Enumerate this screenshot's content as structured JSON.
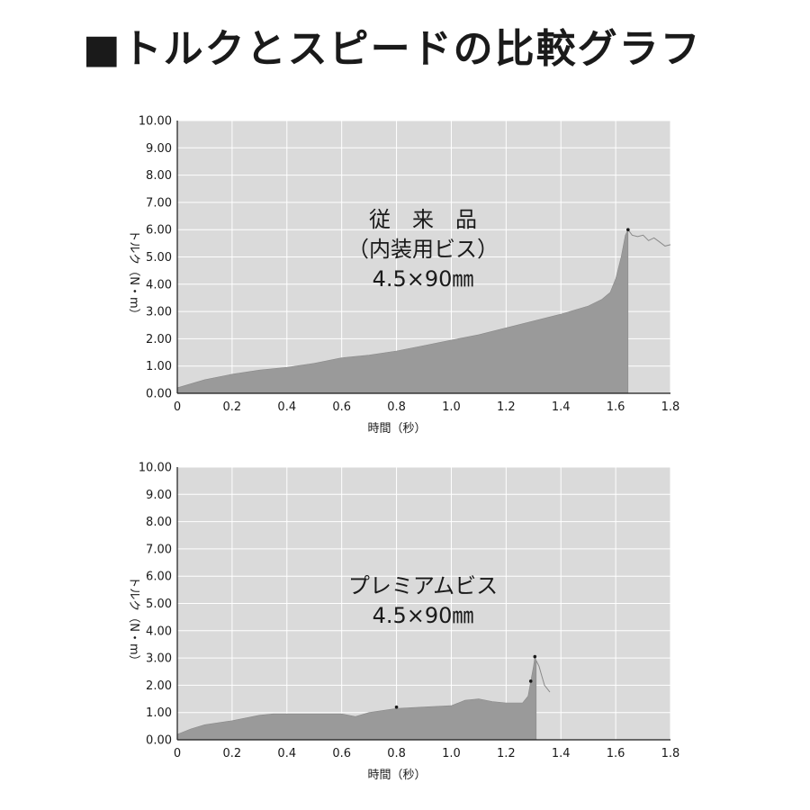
{
  "title": "■トルクとスピードの比較グラフ",
  "chart_data": [
    {
      "type": "area",
      "annotation_lines": [
        "従　来　品",
        "（内装用ビス）",
        "4.5×90㎜"
      ],
      "xlabel": "時間（秒）",
      "ylabel": "トルク（N・m）",
      "xlim": [
        0,
        1.8
      ],
      "ylim": [
        0,
        10
      ],
      "x_ticks": [
        "0",
        "0.2",
        "0.4",
        "0.6",
        "0.8",
        "1.0",
        "1.2",
        "1.4",
        "1.6",
        "1.8"
      ],
      "y_ticks": [
        "0.00",
        "1.00",
        "2.00",
        "3.00",
        "4.00",
        "5.00",
        "6.00",
        "7.00",
        "8.00",
        "9.00",
        "10.00"
      ],
      "grid": true,
      "series": [
        {
          "values": [
            [
              0,
              0.2
            ],
            [
              0.1,
              0.5
            ],
            [
              0.2,
              0.7
            ],
            [
              0.3,
              0.85
            ],
            [
              0.4,
              0.95
            ],
            [
              0.5,
              1.1
            ],
            [
              0.6,
              1.3
            ],
            [
              0.7,
              1.4
            ],
            [
              0.8,
              1.55
            ],
            [
              0.9,
              1.75
            ],
            [
              1.0,
              1.95
            ],
            [
              1.1,
              2.15
            ],
            [
              1.2,
              2.4
            ],
            [
              1.3,
              2.65
            ],
            [
              1.4,
              2.9
            ],
            [
              1.5,
              3.2
            ],
            [
              1.55,
              3.45
            ],
            [
              1.58,
              3.7
            ],
            [
              1.6,
              4.2
            ],
            [
              1.62,
              5.0
            ],
            [
              1.635,
              5.8
            ],
            [
              1.645,
              6.0
            ]
          ]
        },
        {
          "values": [
            [
              1.645,
              6.0
            ],
            [
              1.66,
              5.8
            ],
            [
              1.68,
              5.75
            ],
            [
              1.7,
              5.8
            ],
            [
              1.72,
              5.6
            ],
            [
              1.74,
              5.7
            ],
            [
              1.76,
              5.55
            ],
            [
              1.78,
              5.4
            ],
            [
              1.8,
              5.45
            ]
          ]
        }
      ],
      "markers": [
        [
          1.645,
          6.0
        ]
      ]
    },
    {
      "type": "area",
      "annotation_lines": [
        "プレミアムビス",
        "4.5×90㎜"
      ],
      "xlabel": "時間（秒）",
      "ylabel": "トルク（N・m）",
      "xlim": [
        0,
        1.8
      ],
      "ylim": [
        0,
        10
      ],
      "x_ticks": [
        "0",
        "0.2",
        "0.4",
        "0.6",
        "0.8",
        "1.0",
        "1.2",
        "1.4",
        "1.6",
        "1.8"
      ],
      "y_ticks": [
        "0.00",
        "1.00",
        "2.00",
        "3.00",
        "4.00",
        "5.00",
        "6.00",
        "7.00",
        "8.00",
        "9.00",
        "10.00"
      ],
      "grid": true,
      "series": [
        {
          "values": [
            [
              0,
              0.2
            ],
            [
              0.05,
              0.4
            ],
            [
              0.1,
              0.55
            ],
            [
              0.2,
              0.7
            ],
            [
              0.3,
              0.9
            ],
            [
              0.35,
              0.95
            ],
            [
              0.4,
              0.95
            ],
            [
              0.5,
              0.95
            ],
            [
              0.6,
              0.95
            ],
            [
              0.65,
              0.85
            ],
            [
              0.7,
              1.0
            ],
            [
              0.8,
              1.15
            ],
            [
              0.9,
              1.2
            ],
            [
              1.0,
              1.25
            ],
            [
              1.05,
              1.45
            ],
            [
              1.1,
              1.5
            ],
            [
              1.15,
              1.4
            ],
            [
              1.2,
              1.35
            ],
            [
              1.26,
              1.35
            ],
            [
              1.28,
              1.6
            ],
            [
              1.29,
              2.15
            ],
            [
              1.3,
              2.7
            ],
            [
              1.305,
              3.05
            ],
            [
              1.31,
              2.9
            ]
          ]
        },
        {
          "values": [
            [
              1.31,
              2.9
            ],
            [
              1.32,
              2.7
            ],
            [
              1.33,
              2.35
            ],
            [
              1.34,
              2.0
            ],
            [
              1.36,
              1.75
            ]
          ]
        }
      ],
      "markers": [
        [
          0.8,
          1.2
        ],
        [
          1.29,
          2.15
        ],
        [
          1.305,
          3.05
        ]
      ]
    }
  ]
}
